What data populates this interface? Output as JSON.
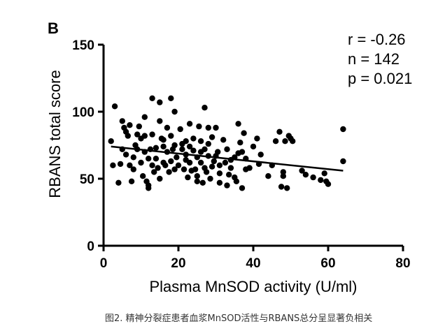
{
  "panel_label": "B",
  "caption": "图2. 精神分裂症患者血浆MnSOD活性与RBANS总分呈显著负相关",
  "stats": [
    "r = -0.26",
    "n = 142",
    "p = 0.021"
  ],
  "chart_data": {
    "type": "scatter",
    "xlabel": "Plasma MnSOD activity (U/ml)",
    "ylabel": "RBANS total score",
    "xlim": [
      0,
      80
    ],
    "ylim": [
      0,
      150
    ],
    "xticks": [
      0,
      20,
      40,
      60,
      80
    ],
    "yticks": [
      0,
      50,
      100,
      150
    ],
    "regression": {
      "x": [
        2,
        64
      ],
      "y": [
        74,
        56
      ]
    },
    "points": [
      [
        3,
        104
      ],
      [
        2,
        78
      ],
      [
        2.5,
        60
      ],
      [
        4,
        47
      ],
      [
        4.5,
        61
      ],
      [
        5,
        93
      ],
      [
        5.5,
        88
      ],
      [
        6,
        85
      ],
      [
        6.5,
        82
      ],
      [
        7,
        60
      ],
      [
        7,
        90
      ],
      [
        7.5,
        48
      ],
      [
        8,
        57
      ],
      [
        8.5,
        75
      ],
      [
        9,
        83
      ],
      [
        9,
        72
      ],
      [
        9.5,
        89
      ],
      [
        10,
        80
      ],
      [
        10.5,
        52
      ],
      [
        11,
        96
      ],
      [
        11,
        82
      ],
      [
        11.5,
        48
      ],
      [
        12,
        43
      ],
      [
        12,
        65
      ],
      [
        12,
        45
      ],
      [
        12.5,
        72
      ],
      [
        13,
        110
      ],
      [
        13,
        83
      ],
      [
        13.5,
        55
      ],
      [
        14,
        73
      ],
      [
        14,
        65
      ],
      [
        14.5,
        58
      ],
      [
        15,
        107
      ],
      [
        15,
        93
      ],
      [
        15,
        50
      ],
      [
        15.5,
        80
      ],
      [
        16,
        74
      ],
      [
        16,
        62
      ],
      [
        16.5,
        60
      ],
      [
        17,
        88
      ],
      [
        17,
        70
      ],
      [
        17.5,
        55
      ],
      [
        18,
        110
      ],
      [
        18,
        82
      ],
      [
        18.5,
        72
      ],
      [
        19,
        100
      ],
      [
        19,
        75
      ],
      [
        19.5,
        66
      ],
      [
        20,
        60
      ],
      [
        20.5,
        87
      ],
      [
        21,
        72
      ],
      [
        21.5,
        57
      ],
      [
        22,
        78
      ],
      [
        22,
        68
      ],
      [
        22.5,
        51
      ],
      [
        23,
        91
      ],
      [
        23,
        62
      ],
      [
        23.5,
        56
      ],
      [
        24,
        80
      ],
      [
        24,
        71
      ],
      [
        24.5,
        57
      ],
      [
        25,
        48
      ],
      [
        25,
        66
      ],
      [
        25.5,
        89
      ],
      [
        26,
        78
      ],
      [
        26,
        62
      ],
      [
        26.5,
        47
      ],
      [
        27,
        103
      ],
      [
        27,
        72
      ],
      [
        27.5,
        55
      ],
      [
        28,
        88
      ],
      [
        28,
        67
      ],
      [
        28.5,
        50
      ],
      [
        29,
        81
      ],
      [
        29,
        59
      ],
      [
        29.5,
        63
      ],
      [
        30,
        88
      ],
      [
        30.5,
        70
      ],
      [
        31,
        54
      ],
      [
        31,
        47
      ],
      [
        32,
        79
      ],
      [
        32.5,
        62
      ],
      [
        33,
        45
      ],
      [
        33.5,
        53
      ],
      [
        34,
        64
      ],
      [
        34,
        58
      ],
      [
        35,
        51
      ],
      [
        35.5,
        48
      ],
      [
        36,
        91
      ],
      [
        36,
        69
      ],
      [
        36.5,
        77
      ],
      [
        37,
        70
      ],
      [
        37,
        43
      ],
      [
        37.5,
        84
      ],
      [
        38,
        65
      ],
      [
        39,
        58
      ],
      [
        41,
        80
      ],
      [
        41.5,
        61
      ],
      [
        44,
        52
      ],
      [
        46,
        78
      ],
      [
        47,
        85
      ],
      [
        47.5,
        44
      ],
      [
        48,
        55
      ],
      [
        48,
        52
      ],
      [
        48.5,
        78
      ],
      [
        49,
        43
      ],
      [
        49.5,
        82
      ],
      [
        50,
        80
      ],
      [
        50.5,
        78
      ],
      [
        53,
        56
      ],
      [
        54,
        53
      ],
      [
        56,
        51
      ],
      [
        58,
        49
      ],
      [
        59,
        54
      ],
      [
        59.5,
        48
      ],
      [
        60,
        46
      ],
      [
        64,
        87
      ],
      [
        64,
        63
      ],
      [
        5,
        72
      ],
      [
        6,
        68
      ],
      [
        8,
        66
      ],
      [
        10,
        62
      ],
      [
        11,
        70
      ],
      [
        13,
        60
      ],
      [
        16,
        79
      ],
      [
        18,
        63
      ],
      [
        19,
        57
      ],
      [
        21,
        76
      ],
      [
        22,
        64
      ],
      [
        23,
        74
      ],
      [
        25,
        52
      ],
      [
        26,
        70
      ],
      [
        27,
        58
      ],
      [
        28,
        76
      ],
      [
        30,
        67
      ],
      [
        31,
        60
      ],
      [
        33,
        72
      ],
      [
        35,
        66
      ],
      [
        38,
        57
      ],
      [
        40,
        74
      ],
      [
        42,
        68
      ],
      [
        45,
        60
      ]
    ]
  }
}
